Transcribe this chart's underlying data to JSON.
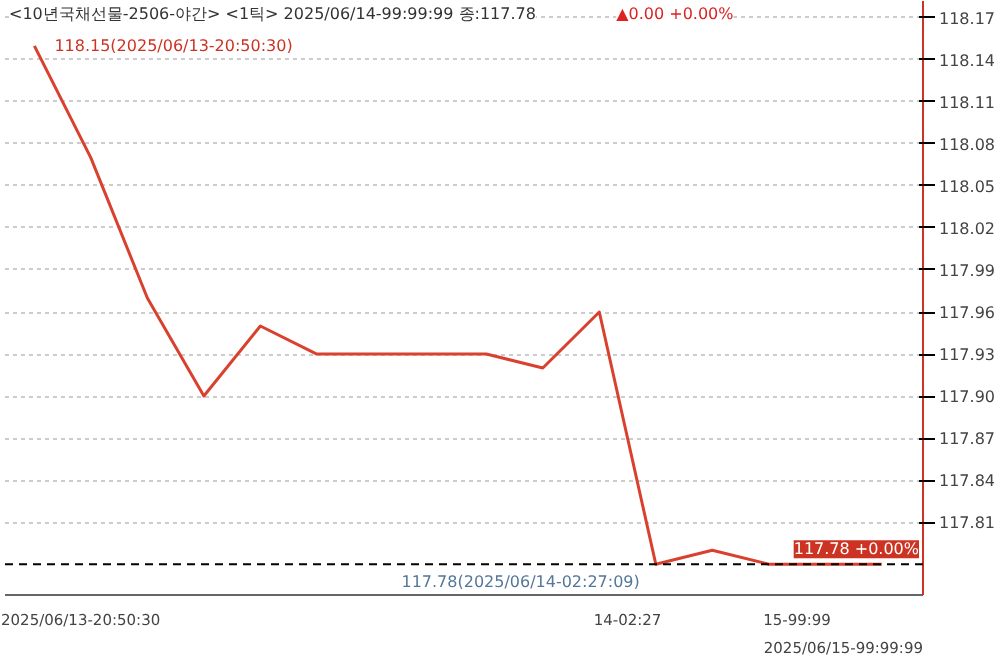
{
  "chart_data": {
    "type": "line",
    "title": "<10년국채선물-2506-야간> <1틱> 2025/06/14-99:99:99 종:117.78",
    "subtitle": "▲0.00 +0.00%",
    "categories": [
      null,
      null,
      null,
      null,
      null,
      null,
      null,
      null,
      null,
      null,
      null,
      null,
      null,
      null,
      null,
      null
    ],
    "series": [
      {
        "color": "#d9412e",
        "values": [
          118.15,
          118.07,
          117.97,
          117.9,
          117.95,
          117.93,
          117.93,
          117.93,
          117.93,
          117.92,
          117.96,
          117.78,
          117.79,
          117.78,
          117.78,
          117.78
        ]
      }
    ],
    "ylim": [
      117.758,
      118.182
    ],
    "yticks": [
      117.81,
      117.84,
      117.87,
      {
        "value": 117.9,
        "label": "117.90"
      },
      117.93,
      117.96,
      117.99,
      118.02,
      118.05,
      118.08,
      118.11,
      118.14,
      118.17
    ],
    "grid": "y",
    "marker": "none",
    "line_style": "solid",
    "ref_lines": [
      {
        "axis": "y",
        "value": 117.78,
        "label": "117.78 +0.00%",
        "color": "#000000",
        "line_style": "dashed"
      }
    ],
    "annotations": [
      "118.15(2025/06/13-20:50:30)",
      "117.78(2025/06/14-02:27:09)",
      "2025/06/13-20:50:30",
      "14-02:27",
      "15-99:99",
      "2025/06/15-99:99:99"
    ]
  }
}
